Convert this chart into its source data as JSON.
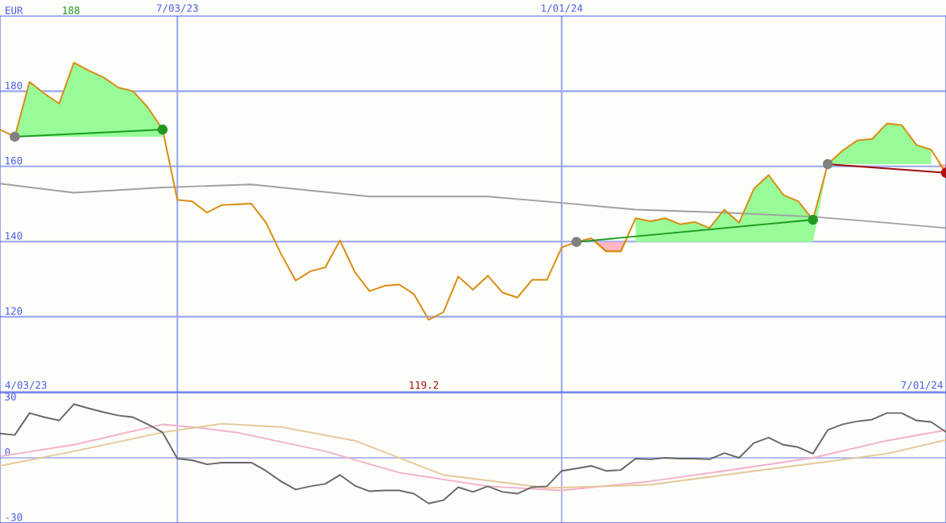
{
  "chart_data": [
    {
      "type": "line",
      "ylabel": "EUR",
      "x": [
        "2023-04-10",
        "2023-04-17",
        "2023-04-24",
        "2023-05-01",
        "2023-05-08",
        "2023-05-15",
        "2023-05-22",
        "2023-05-29",
        "2023-06-05",
        "2023-06-12",
        "2023-06-19",
        "2023-06-26",
        "2023-07-03",
        "2023-07-10",
        "2023-07-17",
        "2023-07-24",
        "2023-07-31",
        "2023-08-07",
        "2023-08-14",
        "2023-08-21",
        "2023-08-28",
        "2023-09-04",
        "2023-09-11",
        "2023-09-18",
        "2023-09-25",
        "2023-10-02",
        "2023-10-09",
        "2023-10-16",
        "2023-10-23",
        "2023-10-30",
        "2023-11-06",
        "2023-11-13",
        "2023-11-20",
        "2023-11-27",
        "2023-12-04",
        "2023-12-11",
        "2023-12-18",
        "2023-12-25",
        "2024-01-01",
        "2024-01-08",
        "2024-01-15",
        "2024-01-22",
        "2024-01-29",
        "2024-02-05",
        "2024-02-12",
        "2024-02-19",
        "2024-02-26",
        "2024-03-04",
        "2024-03-11",
        "2024-03-18",
        "2024-03-25",
        "2024-04-01",
        "2024-04-08",
        "2024-04-15",
        "2024-04-22",
        "2024-04-29",
        "2024-05-06",
        "2024-05-13",
        "2024-05-20",
        "2024-05-27",
        "2024-06-03",
        "2024-06-10",
        "2024-06-17",
        "2024-06-24",
        "2024-07-01"
      ],
      "series": [
        {
          "type": "line",
          "color": "#a0a0a0",
          "x": [
            "2023-04-10",
            "2023-05-15",
            "2023-06-26",
            "2023-08-07",
            "2023-10-02",
            "2023-11-27",
            "2024-01-01",
            "2024-02-05",
            "2024-03-18",
            "2024-04-29",
            "2024-06-03",
            "2024-07-01"
          ],
          "values": [
            155.4,
            153.0,
            154.4,
            155.2,
            152.0,
            152.0,
            150.3,
            148.5,
            147.7,
            146.6,
            145.0,
            143.6
          ]
        },
        {
          "type": "line",
          "color": "#d98c10",
          "values": [
            169.8,
            167.9,
            182.5,
            179.4,
            176.7,
            187.6,
            185.5,
            183.7,
            181.0,
            180.0,
            175.7,
            169.8,
            151.1,
            150.7,
            147.7,
            149.7,
            149.9,
            150.1,
            145.0,
            136.8,
            129.6,
            132.1,
            133.1,
            140.3,
            131.9,
            126.8,
            128.2,
            128.6,
            126.0,
            119.2,
            121.2,
            130.7,
            127.2,
            130.9,
            126.4,
            125.1,
            129.8,
            129.8,
            138.4,
            139.9,
            140.9,
            137.4,
            137.4,
            146.2,
            145.4,
            146.2,
            144.6,
            145.2,
            143.6,
            148.5,
            145.0,
            154.0,
            157.7,
            152.4,
            150.7,
            145.8,
            160.6,
            164.2,
            166.9,
            167.3,
            171.4,
            171.0,
            165.7,
            164.4,
            158.3
          ],
          "lower": [
            null,
            167.9,
            167.9,
            167.9,
            167.9,
            167.9,
            167.9,
            167.9,
            167.9,
            167.9,
            167.9,
            167.9,
            null,
            null,
            null,
            null,
            null,
            null,
            null,
            null,
            null,
            null,
            null,
            null,
            null,
            null,
            null,
            null,
            null,
            null,
            null,
            null,
            null,
            null,
            null,
            null,
            null,
            null,
            null,
            null,
            null,
            null,
            null,
            139.9,
            139.9,
            139.9,
            139.9,
            139.9,
            139.9,
            139.9,
            139.9,
            139.9,
            139.9,
            139.9,
            139.9,
            139.9,
            160.6,
            160.6,
            160.6,
            160.6,
            160.6,
            160.6,
            160.6,
            160.6,
            null
          ],
          "upper": [
            null,
            167.9,
            182.5,
            179.4,
            176.7,
            187.6,
            185.5,
            183.7,
            181.0,
            180.0,
            175.7,
            169.8,
            null,
            null,
            null,
            null,
            null,
            null,
            null,
            null,
            null,
            null,
            null,
            null,
            null,
            null,
            null,
            null,
            null,
            null,
            null,
            null,
            null,
            null,
            null,
            null,
            null,
            null,
            null,
            null,
            null,
            null,
            null,
            146.2,
            145.4,
            146.2,
            144.6,
            145.2,
            143.6,
            148.5,
            145.0,
            154.0,
            157.7,
            152.4,
            150.7,
            145.8,
            160.6,
            164.2,
            166.9,
            167.3,
            171.4,
            171.0,
            165.7,
            164.4,
            null
          ]
        },
        {
          "type": "line",
          "color": "#d98c10",
          "x": [
            "2024-01-17",
            "2024-01-22",
            "2024-01-29",
            "2024-01-31"
          ],
          "values": [
            139.9,
            137.4,
            137.4,
            139.9
          ],
          "lower": [
            139.9,
            139.9,
            139.9,
            139.9
          ],
          "upper": [
            139.9,
            137.4,
            137.4,
            139.9
          ]
        },
        {
          "type": "line",
          "color": "#d98c10",
          "x": [
            "2024-06-28",
            "2024-07-01"
          ],
          "values": [
            160.6,
            158.3
          ],
          "lower": [
            160.6,
            160.6
          ],
          "upper": [
            160.6,
            158.3
          ]
        },
        {
          "type": "line",
          "color": "#1f9a1f",
          "x": [
            "2023-04-17",
            "2023-06-26"
          ],
          "values": [
            167.9,
            169.8
          ]
        },
        {
          "type": "line",
          "color": "#1f9a1f",
          "x": [
            "2024-01-08",
            "2024-04-29"
          ],
          "values": [
            139.9,
            145.8
          ]
        },
        {
          "type": "line",
          "color": "#a01010",
          "x": [
            "2024-05-06",
            "2024-07-01"
          ],
          "values": [
            160.6,
            158.3
          ]
        },
        {
          "type": "scatter",
          "marker": "circle",
          "colors": [
            "#808080",
            "#1f9a1f",
            "#808080",
            "#1f9a1f",
            "#808080",
            "#b01010"
          ],
          "x": [
            "2023-04-17",
            "2023-06-26",
            "2024-01-08",
            "2024-04-29",
            "2024-05-06",
            "2024-07-01"
          ],
          "values": [
            167.9,
            169.8,
            139.9,
            145.8,
            160.6,
            158.3
          ]
        }
      ],
      "xlim": [
        "2023-04-10",
        "2024-07-01"
      ],
      "xticks": [
        {
          "value": "2023-07-03",
          "label": "7/03/23"
        },
        {
          "value": "2024-01-01",
          "label": "1/01/24"
        }
      ],
      "ylim": [
        100,
        200
      ],
      "yticks": [
        120,
        140,
        160,
        180
      ],
      "grid": true,
      "annotations": [
        "188",
        "119.2",
        "4/03/23",
        "7/01/24"
      ]
    },
    {
      "type": "line",
      "series": [
        {
          "color": "#f4b0c8",
          "x": [
            "2023-04-10",
            "2023-05-15",
            "2023-06-26",
            "2023-07-10",
            "2023-07-31",
            "2023-09-11",
            "2023-10-16",
            "2023-11-27",
            "2024-01-01",
            "2024-02-12",
            "2024-03-18",
            "2024-04-29",
            "2024-06-03",
            "2024-07-01"
          ],
          "values": [
            0.7,
            6.0,
            15.4,
            14.2,
            11.7,
            3.0,
            -6.8,
            -13.1,
            -15.0,
            -10.8,
            -6.0,
            0,
            7.9,
            12.8
          ]
        },
        {
          "color": "#e4c898",
          "x": [
            "2023-04-10",
            "2023-05-15",
            "2023-06-26",
            "2023-07-24",
            "2023-08-21",
            "2023-09-25",
            "2023-11-06",
            "2023-12-25",
            "2024-02-12",
            "2024-03-18",
            "2024-04-29",
            "2024-06-03",
            "2024-07-01"
          ],
          "values": [
            -3.7,
            3.0,
            11.7,
            15.7,
            14.2,
            7.9,
            -7.9,
            -13.9,
            -12.4,
            -7.9,
            -2.6,
            1.9,
            8.2
          ]
        },
        {
          "color": "#686868",
          "values": [
            11.2,
            10.5,
            20.6,
            18.7,
            17.2,
            24.7,
            22.8,
            21.0,
            19.5,
            18.7,
            15.4,
            11.7,
            -0.4,
            -1.1,
            -3.0,
            -2.2,
            -2.2,
            -2.2,
            -6.0,
            -10.8,
            -14.6,
            -13.1,
            -12.0,
            -7.9,
            -12.8,
            -15.4,
            -15.0,
            -15.0,
            -16.5,
            -21.0,
            -19.5,
            -13.5,
            -15.7,
            -13.1,
            -15.7,
            -16.5,
            -13.5,
            -13.1,
            -6.0,
            -4.9,
            -3.7,
            -6.0,
            -5.6,
            -0.4,
            -0.7,
            0,
            -0.4,
            -0.4,
            -0.7,
            2.2,
            0,
            6.8,
            9.3,
            6.0,
            4.9,
            1.9,
            12.8,
            15.4,
            16.8,
            17.6,
            20.6,
            20.6,
            17.2,
            16.5,
            11.9
          ]
        }
      ],
      "x": [
        "2023-04-10",
        "2023-04-17",
        "2023-04-24",
        "2023-05-01",
        "2023-05-08",
        "2023-05-15",
        "2023-05-22",
        "2023-05-29",
        "2023-06-05",
        "2023-06-12",
        "2023-06-19",
        "2023-06-26",
        "2023-07-03",
        "2023-07-10",
        "2023-07-17",
        "2023-07-24",
        "2023-07-31",
        "2023-08-07",
        "2023-08-14",
        "2023-08-21",
        "2023-08-28",
        "2023-09-04",
        "2023-09-11",
        "2023-09-18",
        "2023-09-25",
        "2023-10-02",
        "2023-10-09",
        "2023-10-16",
        "2023-10-23",
        "2023-10-30",
        "2023-11-06",
        "2023-11-13",
        "2023-11-20",
        "2023-11-27",
        "2023-12-04",
        "2023-12-11",
        "2023-12-18",
        "2023-12-25",
        "2024-01-01",
        "2024-01-08",
        "2024-01-15",
        "2024-01-22",
        "2024-01-29",
        "2024-02-05",
        "2024-02-12",
        "2024-02-19",
        "2024-02-26",
        "2024-03-04",
        "2024-03-11",
        "2024-03-18",
        "2024-03-25",
        "2024-04-01",
        "2024-04-08",
        "2024-04-15",
        "2024-04-22",
        "2024-04-29",
        "2024-05-06",
        "2024-05-13",
        "2024-05-20",
        "2024-05-27",
        "2024-06-03",
        "2024-06-10",
        "2024-06-17",
        "2024-06-24",
        "2024-07-01"
      ],
      "xlim": [
        "2023-04-10",
        "2024-07-01"
      ],
      "xticks": [
        {
          "value": "2023-07-03",
          "label": null
        },
        {
          "value": "2024-01-01",
          "label": null
        }
      ],
      "ylim": [
        -30,
        30
      ],
      "yticks": [
        -30,
        0,
        30
      ],
      "grid": true,
      "tick_labels": "y"
    }
  ]
}
